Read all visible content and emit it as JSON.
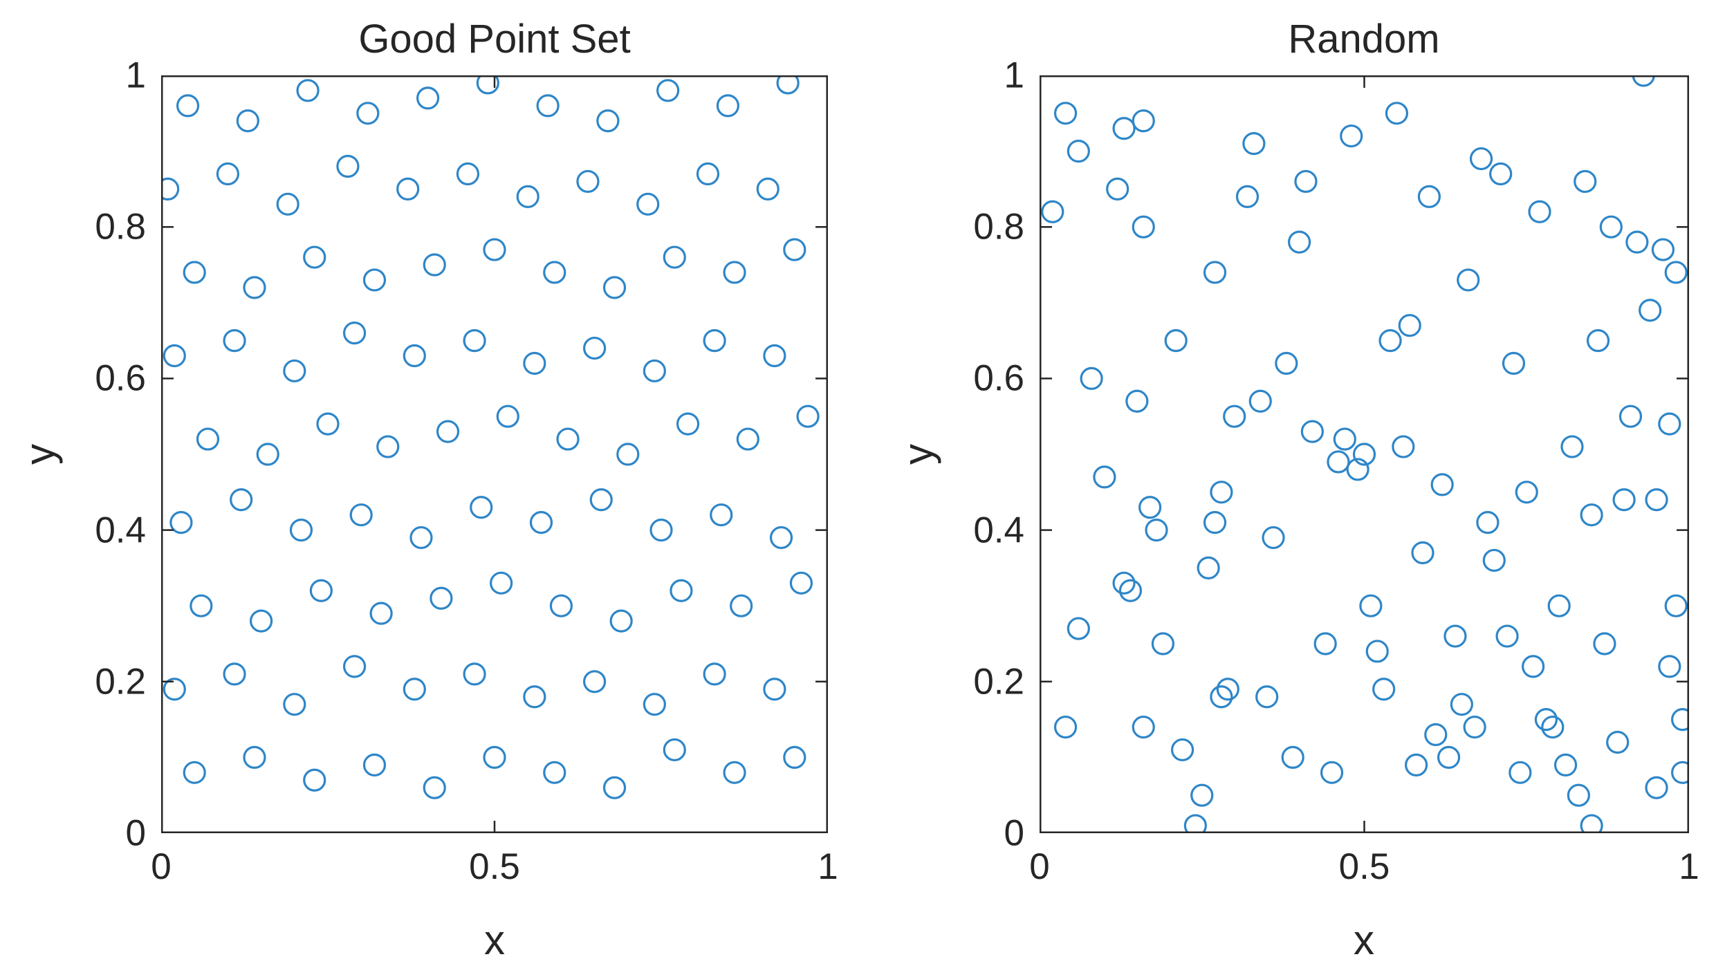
{
  "figure": {
    "background": "#FFFFFF",
    "axis_color": "#262626",
    "text_color": "#262626"
  },
  "chart_data": [
    {
      "type": "scatter",
      "title": "Good Point Set",
      "xlabel": "x",
      "ylabel": "y",
      "xlim": [
        0,
        1
      ],
      "ylim": [
        0,
        1
      ],
      "xticks": [
        0,
        0.5,
        1
      ],
      "xtick_labels": [
        "0",
        "0.5",
        "1"
      ],
      "yticks": [
        0,
        0.2,
        0.4,
        0.6,
        0.8,
        1
      ],
      "ytick_labels": [
        "0",
        "0.2",
        "0.4",
        "0.6",
        "0.8",
        "1"
      ],
      "grid": false,
      "legend": null,
      "marker": "o",
      "marker_color": "#2E86C8",
      "points": [
        [
          0.05,
          0.08
        ],
        [
          0.14,
          0.1
        ],
        [
          0.23,
          0.07
        ],
        [
          0.32,
          0.09
        ],
        [
          0.41,
          0.06
        ],
        [
          0.5,
          0.1
        ],
        [
          0.59,
          0.08
        ],
        [
          0.68,
          0.06
        ],
        [
          0.77,
          0.11
        ],
        [
          0.86,
          0.08
        ],
        [
          0.95,
          0.1
        ],
        [
          0.02,
          0.19
        ],
        [
          0.11,
          0.21
        ],
        [
          0.2,
          0.17
        ],
        [
          0.29,
          0.22
        ],
        [
          0.38,
          0.19
        ],
        [
          0.47,
          0.21
        ],
        [
          0.56,
          0.18
        ],
        [
          0.65,
          0.2
        ],
        [
          0.74,
          0.17
        ],
        [
          0.83,
          0.21
        ],
        [
          0.92,
          0.19
        ],
        [
          0.06,
          0.3
        ],
        [
          0.15,
          0.28
        ],
        [
          0.24,
          0.32
        ],
        [
          0.33,
          0.29
        ],
        [
          0.42,
          0.31
        ],
        [
          0.51,
          0.33
        ],
        [
          0.6,
          0.3
        ],
        [
          0.69,
          0.28
        ],
        [
          0.78,
          0.32
        ],
        [
          0.87,
          0.3
        ],
        [
          0.96,
          0.33
        ],
        [
          0.03,
          0.41
        ],
        [
          0.12,
          0.44
        ],
        [
          0.21,
          0.4
        ],
        [
          0.3,
          0.42
        ],
        [
          0.39,
          0.39
        ],
        [
          0.48,
          0.43
        ],
        [
          0.57,
          0.41
        ],
        [
          0.66,
          0.44
        ],
        [
          0.75,
          0.4
        ],
        [
          0.84,
          0.42
        ],
        [
          0.93,
          0.39
        ],
        [
          0.07,
          0.52
        ],
        [
          0.16,
          0.5
        ],
        [
          0.25,
          0.54
        ],
        [
          0.34,
          0.51
        ],
        [
          0.43,
          0.53
        ],
        [
          0.52,
          0.55
        ],
        [
          0.61,
          0.52
        ],
        [
          0.7,
          0.5
        ],
        [
          0.79,
          0.54
        ],
        [
          0.88,
          0.52
        ],
        [
          0.97,
          0.55
        ],
        [
          0.02,
          0.63
        ],
        [
          0.11,
          0.65
        ],
        [
          0.2,
          0.61
        ],
        [
          0.29,
          0.66
        ],
        [
          0.38,
          0.63
        ],
        [
          0.47,
          0.65
        ],
        [
          0.56,
          0.62
        ],
        [
          0.65,
          0.64
        ],
        [
          0.74,
          0.61
        ],
        [
          0.83,
          0.65
        ],
        [
          0.92,
          0.63
        ],
        [
          0.05,
          0.74
        ],
        [
          0.14,
          0.72
        ],
        [
          0.23,
          0.76
        ],
        [
          0.32,
          0.73
        ],
        [
          0.41,
          0.75
        ],
        [
          0.5,
          0.77
        ],
        [
          0.59,
          0.74
        ],
        [
          0.68,
          0.72
        ],
        [
          0.77,
          0.76
        ],
        [
          0.86,
          0.74
        ],
        [
          0.95,
          0.77
        ],
        [
          0.01,
          0.85
        ],
        [
          0.1,
          0.87
        ],
        [
          0.19,
          0.83
        ],
        [
          0.28,
          0.88
        ],
        [
          0.37,
          0.85
        ],
        [
          0.46,
          0.87
        ],
        [
          0.55,
          0.84
        ],
        [
          0.64,
          0.86
        ],
        [
          0.73,
          0.83
        ],
        [
          0.82,
          0.87
        ],
        [
          0.91,
          0.85
        ],
        [
          0.04,
          0.96
        ],
        [
          0.13,
          0.94
        ],
        [
          0.22,
          0.98
        ],
        [
          0.31,
          0.95
        ],
        [
          0.4,
          0.97
        ],
        [
          0.49,
          0.99
        ],
        [
          0.58,
          0.96
        ],
        [
          0.67,
          0.94
        ],
        [
          0.76,
          0.98
        ],
        [
          0.85,
          0.96
        ],
        [
          0.94,
          0.99
        ]
      ]
    },
    {
      "type": "scatter",
      "title": "Random",
      "xlabel": "x",
      "ylabel": "y",
      "xlim": [
        0,
        1
      ],
      "ylim": [
        0,
        1
      ],
      "xticks": [
        0,
        0.5,
        1
      ],
      "xtick_labels": [
        "0",
        "0.5",
        "1"
      ],
      "yticks": [
        0,
        0.2,
        0.4,
        0.6,
        0.8,
        1
      ],
      "ytick_labels": [
        "0",
        "0.2",
        "0.4",
        "0.6",
        "0.8",
        "1"
      ],
      "grid": false,
      "legend": null,
      "marker": "o",
      "marker_color": "#2E86C8",
      "points": [
        [
          0.02,
          0.82
        ],
        [
          0.04,
          0.95
        ],
        [
          0.06,
          0.9
        ],
        [
          0.04,
          0.14
        ],
        [
          0.06,
          0.27
        ],
        [
          0.08,
          0.6
        ],
        [
          0.1,
          0.47
        ],
        [
          0.12,
          0.85
        ],
        [
          0.13,
          0.93
        ],
        [
          0.16,
          0.94
        ],
        [
          0.13,
          0.33
        ],
        [
          0.14,
          0.32
        ],
        [
          0.15,
          0.57
        ],
        [
          0.16,
          0.8
        ],
        [
          0.17,
          0.43
        ],
        [
          0.18,
          0.4
        ],
        [
          0.16,
          0.14
        ],
        [
          0.19,
          0.25
        ],
        [
          0.21,
          0.65
        ],
        [
          0.22,
          0.11
        ],
        [
          0.24,
          0.01
        ],
        [
          0.25,
          0.05
        ],
        [
          0.26,
          0.35
        ],
        [
          0.27,
          0.41
        ],
        [
          0.27,
          0.74
        ],
        [
          0.28,
          0.18
        ],
        [
          0.29,
          0.19
        ],
        [
          0.28,
          0.45
        ],
        [
          0.3,
          0.55
        ],
        [
          0.32,
          0.84
        ],
        [
          0.33,
          0.91
        ],
        [
          0.34,
          0.57
        ],
        [
          0.35,
          0.18
        ],
        [
          0.36,
          0.39
        ],
        [
          0.38,
          0.62
        ],
        [
          0.39,
          0.1
        ],
        [
          0.4,
          0.78
        ],
        [
          0.41,
          0.86
        ],
        [
          0.42,
          0.53
        ],
        [
          0.44,
          0.25
        ],
        [
          0.45,
          0.08
        ],
        [
          0.46,
          0.49
        ],
        [
          0.47,
          0.52
        ],
        [
          0.48,
          0.92
        ],
        [
          0.49,
          0.48
        ],
        [
          0.5,
          0.5
        ],
        [
          0.51,
          0.3
        ],
        [
          0.52,
          0.24
        ],
        [
          0.53,
          0.19
        ],
        [
          0.54,
          0.65
        ],
        [
          0.55,
          0.95
        ],
        [
          0.56,
          0.51
        ],
        [
          0.57,
          0.67
        ],
        [
          0.58,
          0.09
        ],
        [
          0.59,
          0.37
        ],
        [
          0.6,
          0.84
        ],
        [
          0.61,
          0.13
        ],
        [
          0.62,
          0.46
        ],
        [
          0.63,
          0.1
        ],
        [
          0.64,
          0.26
        ],
        [
          0.65,
          0.17
        ],
        [
          0.66,
          0.73
        ],
        [
          0.67,
          0.14
        ],
        [
          0.68,
          0.89
        ],
        [
          0.69,
          0.41
        ],
        [
          0.7,
          0.36
        ],
        [
          0.71,
          0.87
        ],
        [
          0.72,
          0.26
        ],
        [
          0.73,
          0.62
        ],
        [
          0.74,
          0.08
        ],
        [
          0.75,
          0.45
        ],
        [
          0.76,
          0.22
        ],
        [
          0.77,
          0.82
        ],
        [
          0.78,
          0.15
        ],
        [
          0.79,
          0.14
        ],
        [
          0.8,
          0.3
        ],
        [
          0.81,
          0.09
        ],
        [
          0.82,
          0.51
        ],
        [
          0.83,
          0.05
        ],
        [
          0.84,
          0.86
        ],
        [
          0.85,
          0.42
        ],
        [
          0.85,
          0.01
        ],
        [
          0.86,
          0.65
        ],
        [
          0.87,
          0.25
        ],
        [
          0.88,
          0.8
        ],
        [
          0.89,
          0.12
        ],
        [
          0.9,
          0.44
        ],
        [
          0.91,
          0.55
        ],
        [
          0.92,
          0.78
        ],
        [
          0.93,
          1.0
        ],
        [
          0.94,
          0.69
        ],
        [
          0.95,
          0.06
        ],
        [
          0.95,
          0.44
        ],
        [
          0.96,
          0.77
        ],
        [
          0.97,
          0.54
        ],
        [
          0.97,
          0.22
        ],
        [
          0.98,
          0.3
        ],
        [
          0.98,
          0.74
        ],
        [
          0.99,
          0.08
        ],
        [
          0.99,
          0.15
        ]
      ]
    }
  ]
}
